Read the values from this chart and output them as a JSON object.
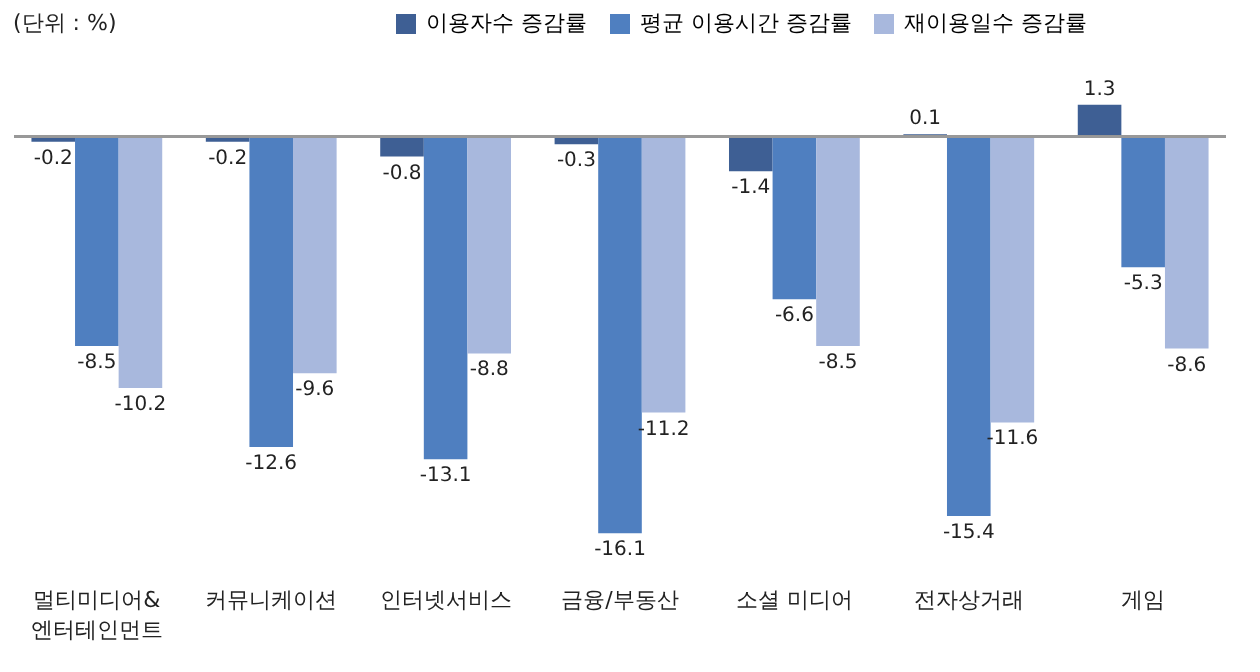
{
  "chart_data": {
    "type": "bar",
    "annotations": [
      "(단위 : %)"
    ],
    "categories": [
      "멀티미디어&\n엔터테인먼트",
      "커뮤니케이션",
      "인터넷서비스",
      "금융/부동산",
      "소셜 미디어",
      "전자상거래",
      "게임"
    ],
    "series": [
      {
        "name": "이용자수 증감률",
        "color": "#3e5f94",
        "values": [
          -0.2,
          -0.2,
          -0.8,
          -0.3,
          -1.4,
          0.1,
          1.3
        ]
      },
      {
        "name": "평균 이용시간 증감률",
        "color": "#4f7fc0",
        "values": [
          -8.5,
          -12.6,
          -13.1,
          -16.1,
          -6.6,
          -15.4,
          -5.3
        ]
      },
      {
        "name": "재이용일수 증감률",
        "color": "#a8b8dd",
        "values": [
          -10.2,
          -9.6,
          -8.8,
          -11.2,
          -8.5,
          -11.6,
          -8.6
        ]
      }
    ],
    "data_labels": true,
    "legend": "top",
    "grid": false
  }
}
